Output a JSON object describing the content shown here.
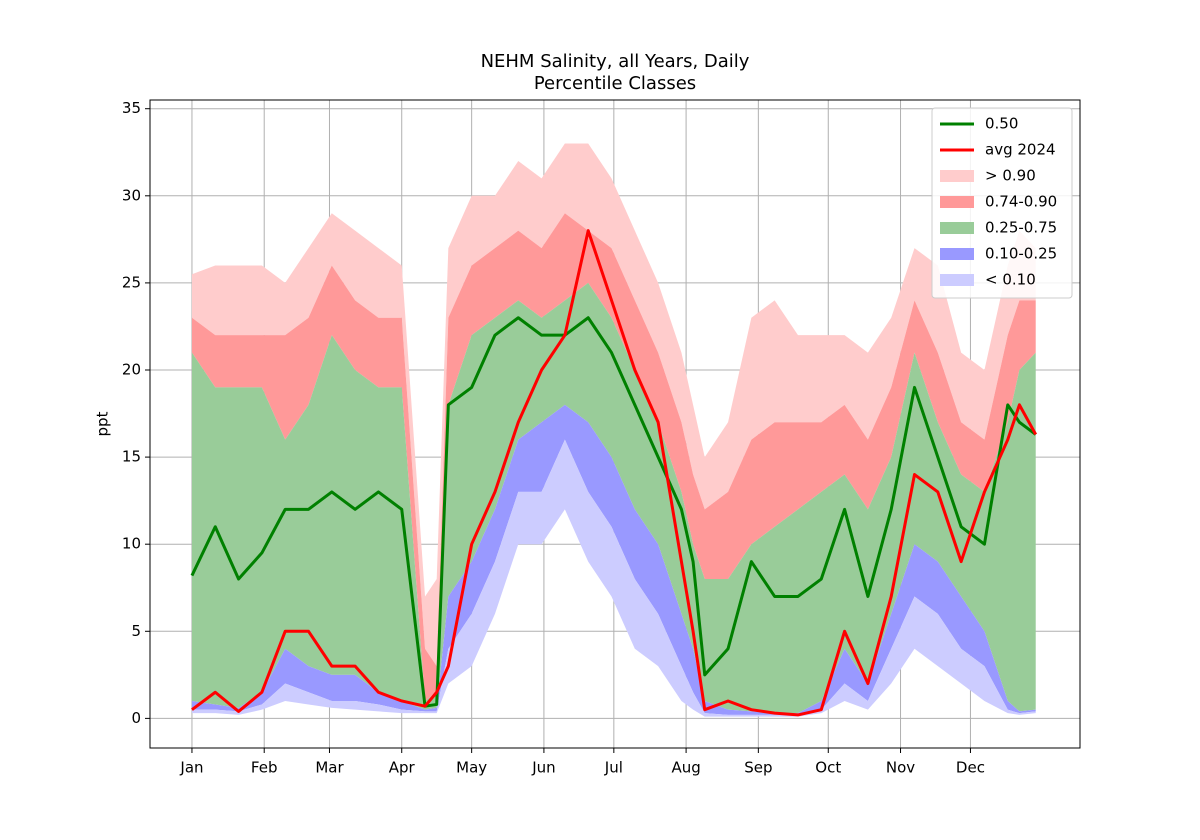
{
  "chart_data": {
    "type": "band-line",
    "title": "NEHM Salinity, all Years, Daily",
    "subtitle": "Percentile Classes",
    "y_label": "ppt",
    "x": [
      1,
      11,
      21,
      31,
      41,
      51,
      61,
      71,
      81,
      91,
      101,
      106,
      111,
      121,
      131,
      141,
      151,
      161,
      171,
      181,
      191,
      201,
      211,
      216,
      221,
      231,
      241,
      251,
      261,
      271,
      281,
      291,
      301,
      311,
      321,
      331,
      341,
      351,
      356,
      363
    ],
    "xlim": [
      -17,
      382
    ],
    "xticks": [
      {
        "value": 1,
        "label": "Jan"
      },
      {
        "value": 32,
        "label": "Feb"
      },
      {
        "value": 60,
        "label": "Mar"
      },
      {
        "value": 91,
        "label": "Apr"
      },
      {
        "value": 121,
        "label": "May"
      },
      {
        "value": 152,
        "label": "Jun"
      },
      {
        "value": 182,
        "label": "Jul"
      },
      {
        "value": 213,
        "label": "Aug"
      },
      {
        "value": 244,
        "label": "Sep"
      },
      {
        "value": 274,
        "label": "Oct"
      },
      {
        "value": 305,
        "label": "Nov"
      },
      {
        "value": 335,
        "label": "Dec"
      }
    ],
    "ylim": [
      -1.7,
      35.5
    ],
    "yticks": [
      0,
      5,
      10,
      15,
      20,
      25,
      30,
      35
    ],
    "grid": true,
    "legend": "upper right",
    "series": [
      {
        "name": "0.50",
        "color": "#008000",
        "values": [
          8.2,
          11,
          8,
          9.5,
          12,
          12,
          13,
          12,
          13,
          12,
          0.7,
          0.8,
          18,
          19,
          22,
          23,
          22,
          22,
          23,
          21,
          18,
          15,
          12,
          9,
          2.5,
          4,
          9,
          7,
          7,
          8,
          12,
          7,
          12,
          19,
          15,
          11,
          10,
          18,
          17,
          16.3
        ]
      },
      {
        "name": "avg 2024",
        "color": "#ff0000",
        "values": [
          0.5,
          1.5,
          0.4,
          1.5,
          5,
          5,
          3,
          3,
          1.5,
          1,
          0.7,
          1.5,
          3,
          10,
          13,
          17,
          20,
          22,
          28,
          24,
          20,
          17,
          9,
          5,
          0.5,
          1,
          0.5,
          0.3,
          0.2,
          0.5,
          5,
          2,
          7,
          14,
          13,
          9,
          13,
          16,
          18,
          16.3
        ]
      }
    ],
    "bands": [
      {
        "name": "> 0.90",
        "color": "#ffcccc",
        "lower": [
          23,
          22,
          22,
          22,
          22,
          23,
          26,
          24,
          23,
          23,
          4,
          3,
          23,
          26,
          27,
          28,
          27,
          29,
          28,
          27,
          24,
          21,
          17,
          14,
          12,
          13,
          16,
          17,
          17,
          17,
          18,
          16,
          19,
          24,
          21,
          17,
          16,
          22,
          24,
          24
        ],
        "upper": [
          25.5,
          26,
          26,
          26,
          25,
          27,
          29,
          28,
          27,
          26,
          7,
          8,
          27,
          30,
          30,
          32,
          31,
          33,
          33,
          31,
          28,
          25,
          21,
          18,
          15,
          17,
          23,
          24,
          22,
          22,
          22,
          21,
          23,
          27,
          26,
          21,
          20,
          26,
          28,
          27
        ]
      },
      {
        "name": "0.74-0.90",
        "color": "#ff9999",
        "lower": [
          21,
          19,
          19,
          19,
          16,
          18,
          22,
          20,
          19,
          19,
          1,
          1.5,
          18,
          22,
          23,
          24,
          23,
          24,
          25,
          23,
          20,
          17,
          13,
          10,
          8,
          8,
          10,
          11,
          12,
          13,
          14,
          12,
          15,
          21,
          17,
          14,
          13,
          17,
          20,
          21
        ],
        "upper": [
          23,
          22,
          22,
          22,
          22,
          23,
          26,
          24,
          23,
          23,
          4,
          3,
          23,
          26,
          27,
          28,
          27,
          29,
          28,
          27,
          24,
          21,
          17,
          14,
          12,
          13,
          16,
          17,
          17,
          17,
          18,
          16,
          19,
          24,
          21,
          17,
          16,
          22,
          24,
          24
        ]
      },
      {
        "name": "0.25-0.75",
        "color": "#99cc99",
        "lower": [
          1,
          0.8,
          0.6,
          1.5,
          4,
          3,
          2.5,
          2.5,
          1.5,
          1,
          0.5,
          0.6,
          7,
          9,
          12,
          16,
          17,
          18,
          17,
          15,
          12,
          10,
          6,
          4,
          1,
          0.5,
          0.4,
          0.3,
          0.3,
          1,
          4,
          2,
          6,
          10,
          9,
          7,
          5,
          1,
          0.4,
          0.5
        ],
        "upper": [
          21,
          19,
          19,
          19,
          16,
          18,
          22,
          20,
          19,
          19,
          1,
          1.5,
          18,
          22,
          23,
          24,
          23,
          24,
          25,
          23,
          20,
          17,
          13,
          10,
          8,
          8,
          10,
          11,
          12,
          13,
          14,
          12,
          15,
          21,
          17,
          14,
          13,
          17,
          20,
          21
        ]
      },
      {
        "name": "0.10-0.25",
        "color": "#9999ff",
        "lower": [
          0.5,
          0.5,
          0.4,
          0.8,
          2,
          1.5,
          1,
          1,
          0.8,
          0.5,
          0.4,
          0.4,
          4,
          6,
          9,
          13,
          13,
          16,
          13,
          11,
          8,
          6,
          3,
          1.5,
          0.3,
          0.2,
          0.2,
          0.2,
          0.2,
          0.5,
          2,
          1,
          4,
          7,
          6,
          4,
          3,
          0.5,
          0.3,
          0.4
        ],
        "upper": [
          1,
          0.8,
          0.6,
          1.5,
          4,
          3,
          2.5,
          2.5,
          1.5,
          1,
          0.5,
          0.6,
          7,
          9,
          12,
          16,
          17,
          18,
          17,
          15,
          12,
          10,
          6,
          4,
          1,
          0.5,
          0.4,
          0.3,
          0.3,
          1,
          4,
          2,
          6,
          10,
          9,
          7,
          5,
          1,
          0.4,
          0.5
        ]
      },
      {
        "name": "< 0.10",
        "color": "#ccccff",
        "lower": [
          0.3,
          0.3,
          0.2,
          0.5,
          1,
          0.8,
          0.6,
          0.5,
          0.4,
          0.3,
          0.3,
          0.3,
          2,
          3,
          6,
          10,
          10,
          12,
          9,
          7,
          4,
          3,
          1,
          0.5,
          0.1,
          0.1,
          0.1,
          0.1,
          0.1,
          0.3,
          1,
          0.5,
          2,
          4,
          3,
          2,
          1,
          0.3,
          0.2,
          0.3
        ],
        "upper": [
          0.5,
          0.5,
          0.4,
          0.8,
          2,
          1.5,
          1,
          1,
          0.8,
          0.5,
          0.4,
          0.4,
          4,
          6,
          9,
          13,
          13,
          16,
          13,
          11,
          8,
          6,
          3,
          1.5,
          0.3,
          0.2,
          0.2,
          0.2,
          0.2,
          0.5,
          2,
          1,
          4,
          7,
          6,
          4,
          3,
          0.5,
          0.3,
          0.4
        ]
      }
    ]
  }
}
